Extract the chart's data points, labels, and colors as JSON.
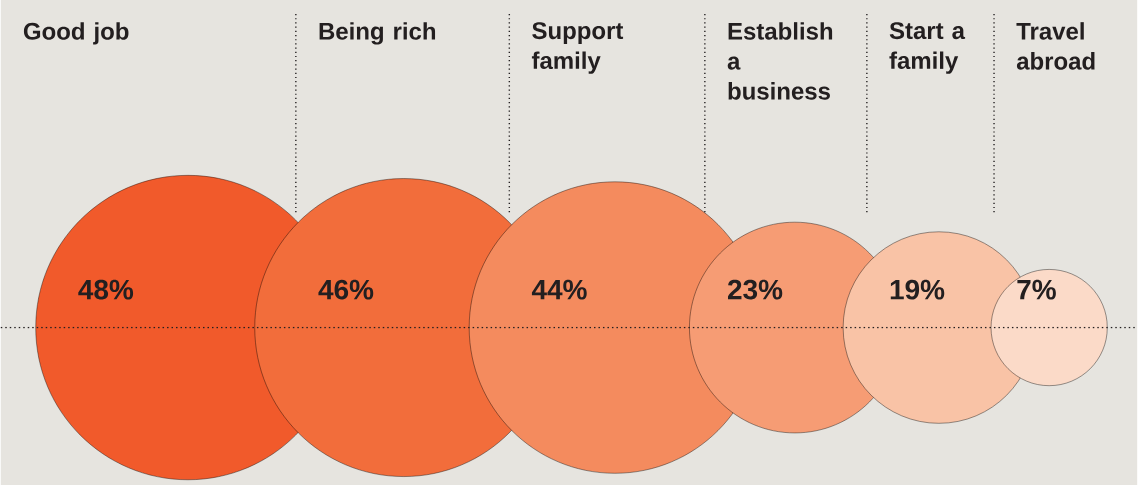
{
  "chart_data": {
    "type": "other",
    "categories": [
      "Good job",
      "Being rich",
      "Support family",
      "Establish a business",
      "Start a family",
      "Travel abroad"
    ],
    "values": [
      48,
      46,
      44,
      23,
      19,
      7
    ],
    "value_labels": [
      "48%",
      "46%",
      "44%",
      "23%",
      "19%",
      "7%"
    ],
    "colors": [
      "#f15a2b",
      "#f26d3b",
      "#f48b5e",
      "#f69c74",
      "#f9c3a6",
      "#fbdac8"
    ]
  }
}
